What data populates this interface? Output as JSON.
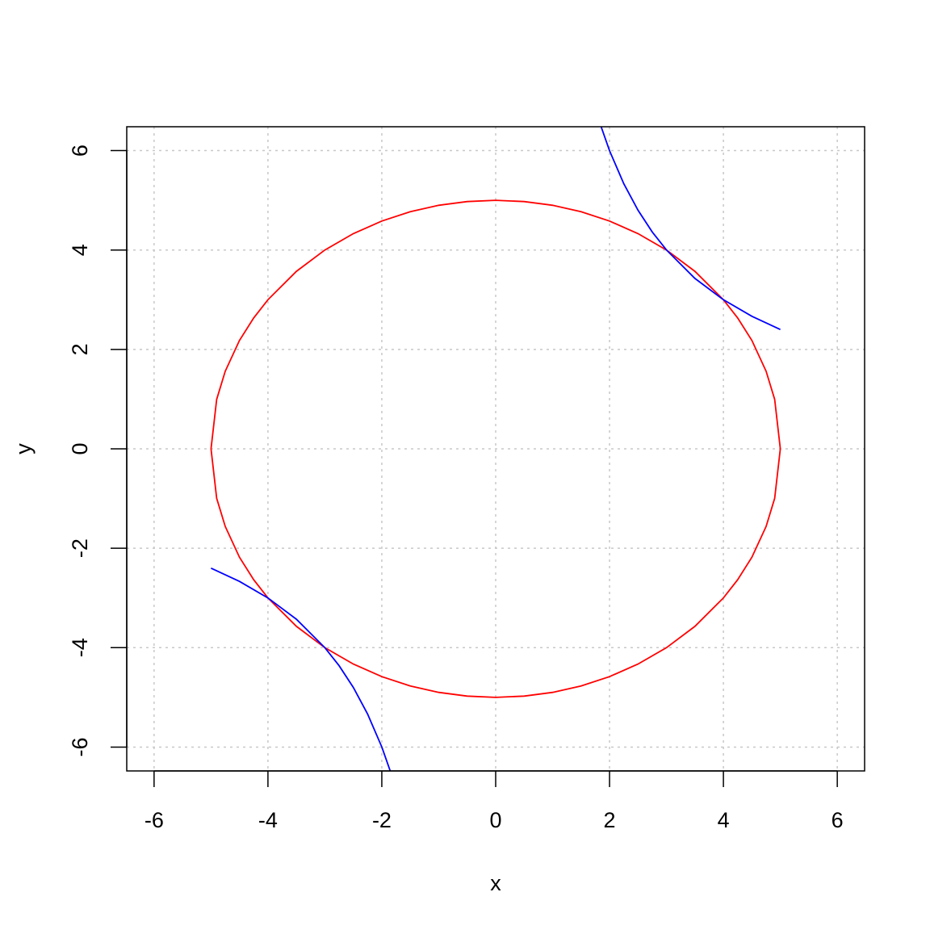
{
  "chart_data": {
    "type": "line",
    "title": "",
    "xlabel": "x",
    "ylabel": "y",
    "xlim": [
      -6.48,
      6.48
    ],
    "ylim": [
      -6.48,
      6.48
    ],
    "xticks": [
      -6,
      -4,
      -2,
      0,
      2,
      4,
      6
    ],
    "yticks": [
      -6,
      -4,
      -2,
      0,
      2,
      4,
      6
    ],
    "xtick_labels": [
      "-6",
      "-4",
      "-2",
      "0",
      "2",
      "4",
      "6"
    ],
    "ytick_labels": [
      "-6",
      "-4",
      "-2",
      "0",
      "2",
      "4",
      "6"
    ],
    "grid": true,
    "grid_style": "dotted",
    "legend": "none",
    "series": [
      {
        "color": "#ff0000",
        "x": [
          -5,
          -4.9,
          -4.75,
          -4.5,
          -4.25,
          -4,
          -3.5,
          -3,
          -2.5,
          -2,
          -1.5,
          -1,
          -0.5,
          0,
          0.5,
          1,
          1.5,
          2,
          2.5,
          3,
          3.5,
          4,
          4.25,
          4.5,
          4.75,
          4.9,
          5
        ],
        "y": [
          0,
          0.995,
          1.561,
          2.179,
          2.634,
          3,
          3.571,
          4,
          4.33,
          4.583,
          4.77,
          4.899,
          4.975,
          5,
          4.975,
          4.899,
          4.77,
          4.583,
          4.33,
          4,
          3.571,
          3,
          2.634,
          2.179,
          1.561,
          0.995,
          0
        ]
      },
      {
        "color": "#ff0000",
        "x": [
          -5,
          -4.9,
          -4.75,
          -4.5,
          -4.25,
          -4,
          -3.5,
          -3,
          -2.5,
          -2,
          -1.5,
          -1,
          -0.5,
          0,
          0.5,
          1,
          1.5,
          2,
          2.5,
          3,
          3.5,
          4,
          4.25,
          4.5,
          4.75,
          4.9,
          5
        ],
        "y": [
          0,
          -0.995,
          -1.561,
          -2.179,
          -2.634,
          -3,
          -3.571,
          -4,
          -4.33,
          -4.583,
          -4.77,
          -4.899,
          -4.975,
          -5,
          -4.975,
          -4.899,
          -4.77,
          -4.583,
          -4.33,
          -4,
          -3.571,
          -3,
          -2.634,
          -2.179,
          -1.561,
          -0.995,
          0
        ]
      },
      {
        "color": "#0000ff",
        "x": [
          1.85,
          2,
          2.25,
          2.5,
          2.75,
          3,
          3.5,
          4,
          4.5,
          5
        ],
        "y": [
          6.486,
          6,
          5.333,
          4.8,
          4.364,
          4,
          3.429,
          3,
          2.667,
          2.4
        ]
      },
      {
        "color": "#0000ff",
        "x": [
          -1.85,
          -2,
          -2.25,
          -2.5,
          -2.75,
          -3,
          -3.5,
          -4,
          -4.5,
          -5
        ],
        "y": [
          -6.486,
          -6,
          -5.333,
          -4.8,
          -4.364,
          -4,
          -3.429,
          -3,
          -2.667,
          -2.4
        ]
      }
    ]
  }
}
